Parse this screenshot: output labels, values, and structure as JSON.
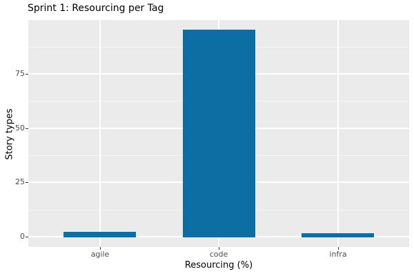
{
  "title": "Sprint 1: Resourcing per Tag",
  "axes": {
    "x_label": "Resourcing (%)",
    "y_label": "Story types",
    "y_tick_labels": [
      "0",
      "25",
      "50",
      "75"
    ],
    "x_tick_labels": [
      "agile",
      "code",
      "infra"
    ]
  },
  "colors": {
    "bar_fill": "#0d6ea4",
    "panel_background": "#ebebeb",
    "grid_major": "#ffffff",
    "grid_minor": "#f5f5f5",
    "tick_mark": "#333333",
    "tick_text": "#4d4d4d",
    "title_text": "#000000"
  },
  "chart_data": {
    "type": "bar",
    "categories": [
      "agile",
      "code",
      "infra"
    ],
    "values": [
      2.5,
      95.5,
      2
    ],
    "title": "Sprint 1: Resourcing per Tag",
    "xlabel": "Resourcing (%)",
    "ylabel": "Story types",
    "ylim": [
      -4.75,
      99.75
    ],
    "y_major_breaks": [
      0,
      25,
      50,
      75
    ],
    "y_minor_breaks": [
      12.5,
      37.5,
      62.5,
      87.5
    ],
    "grid": true,
    "legend": false,
    "style": "ggplot-gray-panel"
  }
}
